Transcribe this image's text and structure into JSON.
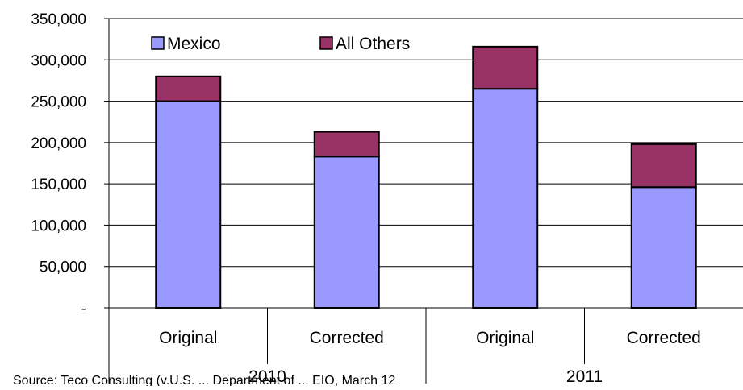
{
  "chart_data": {
    "type": "bar",
    "stacked": true,
    "categories": [
      "Original",
      "Corrected",
      "Original",
      "Corrected"
    ],
    "groups": [
      {
        "label": "2010",
        "categories": [
          "Original",
          "Corrected"
        ]
      },
      {
        "label": "2011",
        "categories": [
          "Original",
          "Corrected"
        ]
      }
    ],
    "series": [
      {
        "name": "Mexico",
        "color": "#9999ff",
        "values": [
          250000,
          183000,
          265000,
          146000
        ]
      },
      {
        "name": "All Others",
        "color": "#993366",
        "values": [
          30000,
          30000,
          51000,
          52000
        ]
      }
    ],
    "ylim": [
      0,
      350000
    ],
    "yticks": [
      0,
      50000,
      100000,
      150000,
      200000,
      250000,
      300000,
      350000
    ],
    "ytick_labels": [
      "-",
      "50,000",
      "100,000",
      "150,000",
      "200,000",
      "250,000",
      "300,000",
      "350,000"
    ],
    "grid": true,
    "legend": "top-left",
    "source_note": "Source: Teco Consulting (v.U.S. ... Department of ... EIO, March 12"
  }
}
